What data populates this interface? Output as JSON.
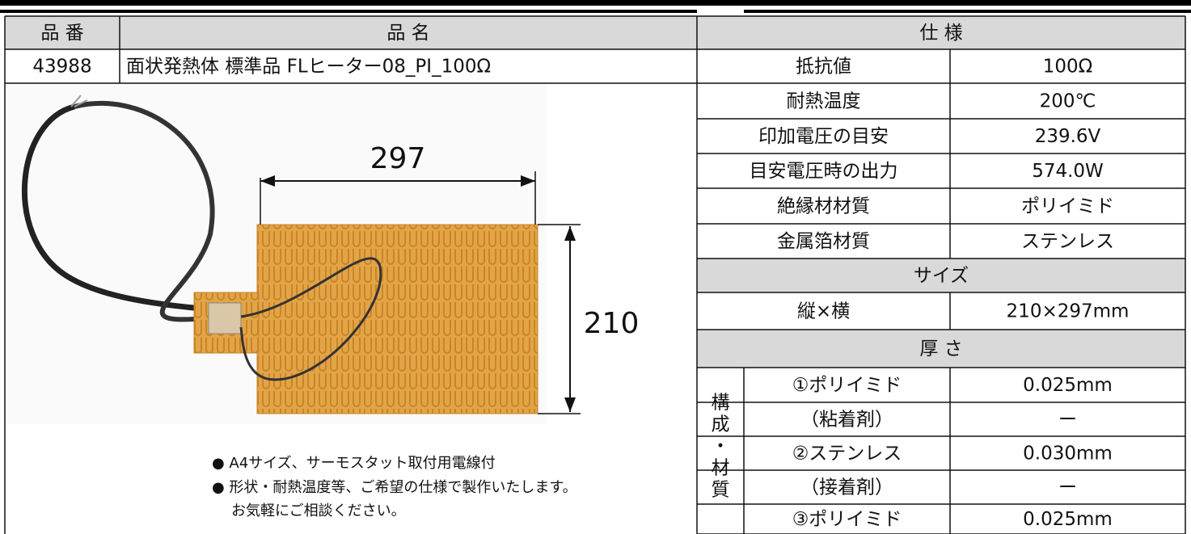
{
  "header": {
    "part_no": "品 番",
    "name": "品 名",
    "spec": "仕 様"
  },
  "product": {
    "part_no": "43988",
    "name": "面状発熱体 標準品 FLヒーター08_PI_100Ω"
  },
  "specs": [
    {
      "label": "抵抗値",
      "value": "100Ω"
    },
    {
      "label": "耐熱温度",
      "value": "200℃"
    },
    {
      "label": "印加電圧の目安",
      "value": "239.6V"
    },
    {
      "label": "目安電圧時の出力",
      "value": "574.0W"
    },
    {
      "label": "絶縁材材質",
      "value": "ポリイミド"
    },
    {
      "label": "金属箔材質",
      "value": "ステンレス"
    }
  ],
  "size": {
    "title": "サイズ",
    "label": "縦×横",
    "value": "210×297mm"
  },
  "thickness": {
    "title": "厚 さ",
    "group": [
      "構",
      "成",
      "・",
      "材",
      "質"
    ],
    "layers": [
      {
        "label": "①ポリイミド",
        "value": "0.025mm"
      },
      {
        "label": "（粘着剤）",
        "value": "ー"
      },
      {
        "label": "②ステンレス",
        "value": "0.030mm"
      },
      {
        "label": "（接着剤）",
        "value": "ー"
      },
      {
        "label": "③ポリイミド",
        "value": "0.025mm"
      }
    ]
  },
  "figure": {
    "width_label": "297",
    "height_label": "210",
    "notes": [
      "● A4サイズ、サーモスタット取付用電線付",
      "● 形状・耐熱温度等、ご希望の仕様で製作いたします。",
      "お気軽にご相談ください。"
    ]
  }
}
